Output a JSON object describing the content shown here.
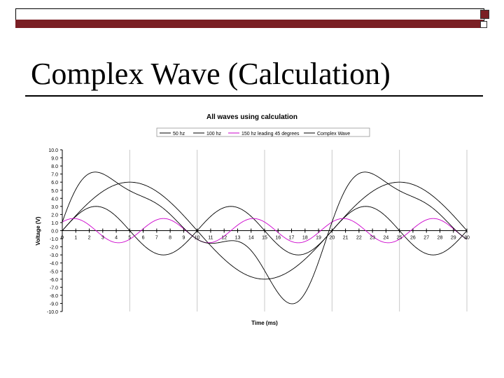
{
  "slide": {
    "title": "Complex Wave (Calculation)",
    "colors": {
      "accent_bar": "#7a1f24"
    }
  },
  "chart_data": {
    "type": "line",
    "title": "All waves using calculation",
    "xlabel": "Time (ms)",
    "ylabel": "Voltage (V)",
    "xlim": [
      0,
      30
    ],
    "ylim": [
      -10,
      10
    ],
    "x_ticks": [
      "0",
      "1",
      "2",
      "3",
      "4",
      "5",
      "6",
      "7",
      "8",
      "9",
      "10",
      "11",
      "12",
      "13",
      "14",
      "15",
      "16",
      "17",
      "18",
      "19",
      "20",
      "21",
      "22",
      "23",
      "24",
      "25",
      "26",
      "27",
      "28",
      "29",
      "30"
    ],
    "y_ticks": [
      "-10.0",
      "-9.0",
      "-8.0",
      "-7.0",
      "-6.0",
      "-5.0",
      "-4.0",
      "-3.0",
      "-2.0",
      "-1.0",
      "0.0",
      "1.0",
      "2.0",
      "3.0",
      "4.0",
      "5.0",
      "6.0",
      "7.0",
      "8.0",
      "9.0",
      "10.0"
    ],
    "grid": "vertical",
    "legend_position": "top",
    "series": [
      {
        "name": "50 hz",
        "color": "#000000",
        "amplitude": 6,
        "frequency_hz": 50,
        "phase_deg": 0,
        "x": [
          0,
          2.5,
          5,
          7.5,
          10,
          12.5,
          15,
          17.5,
          20,
          22.5,
          25,
          27.5,
          30
        ],
        "values": [
          0,
          4.24,
          6,
          4.24,
          0,
          -4.24,
          -6,
          -4.24,
          0,
          4.24,
          6,
          4.24,
          0
        ]
      },
      {
        "name": "100 hz",
        "color": "#000000",
        "amplitude": 3,
        "frequency_hz": 100,
        "phase_deg": 0,
        "x": [
          0,
          1.25,
          2.5,
          3.75,
          5,
          6.25,
          7.5,
          8.75,
          10
        ],
        "values": [
          0,
          2.12,
          3,
          2.12,
          0,
          -2.12,
          -3,
          -2.12,
          0
        ]
      },
      {
        "name": "150 hz leading 45 degrees",
        "color": "#cc00cc",
        "amplitude": 1.5,
        "frequency_hz": 150,
        "phase_deg": 45,
        "x": [
          0,
          0.83,
          1.67,
          2.5,
          3.33,
          4.17,
          5,
          5.83,
          6.67
        ],
        "values": [
          1.06,
          1.5,
          1.06,
          0,
          -1.06,
          -1.5,
          -1.06,
          0,
          1.06
        ]
      },
      {
        "name": "Complex Wave",
        "color": "#000000",
        "is_sum": true,
        "x": [
          0,
          4.2,
          8,
          10,
          15.8,
          19,
          24.2,
          30
        ],
        "values": [
          1.06,
          7.2,
          -0.8,
          -1.06,
          -9.0,
          -0.5,
          7.2,
          1.06
        ]
      }
    ]
  }
}
